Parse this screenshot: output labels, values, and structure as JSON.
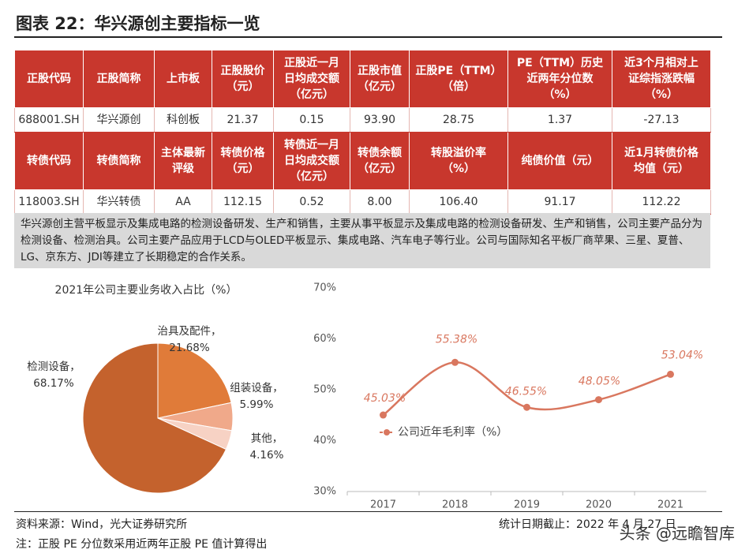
{
  "header": {
    "title": "图表 22：华兴源创主要指标一览"
  },
  "table": {
    "rows": [
      [
        "正股代码",
        "正股简称",
        "上市板",
        "正股股价\n（元）",
        "正股近一月\n日均成交额\n（亿元）",
        "正股市值\n（亿元）",
        "正股PE（TTM）\n（倍）",
        "PE（TTM）历史\n近两年分位数\n（%）",
        "近3个月相对上\n证综指涨跌幅\n（%）"
      ],
      [
        "688001.SH",
        "华兴源创",
        "科创板",
        "21.37",
        "0.15",
        "93.90",
        "28.75",
        "1.37",
        "-27.13"
      ],
      [
        "转债代码",
        "转债简称",
        "主体最新\n评级",
        "转债价格\n（元）",
        "转债近一月\n日均成交额\n（亿元）",
        "转债余额\n（亿元）",
        "转股溢价率\n（%）",
        "纯债价值（元）",
        "近1月转债价格\n均值（元）"
      ],
      [
        "118003.SH",
        "华兴转债",
        "AA",
        "112.15",
        "0.52",
        "8.00",
        "106.40",
        "91.17",
        "112.22"
      ]
    ]
  },
  "description": "华兴源创主营平板显示及集成电路的检测设备研发、生产和销售，主要从事平板显示及集成电路的检测设备研发、生产和销售，公司主要产品分为检测设备、检测治具。公司主要产品应用于LCD与OLED平板显示、集成电路、汽车电子等行业。公司与国际知名平板厂商苹果、三星、夏普、LG、京东方、JDI等建立了长期稳定的合作关系。",
  "chart_data": [
    {
      "type": "pie",
      "title": "2021年公司主要业务收入占比（%）",
      "categories": [
        "治具及配件，",
        "组装设备，",
        "其他，",
        "检测设备，"
      ],
      "values": [
        21.68,
        5.99,
        4.16,
        68.17
      ],
      "value_labels": [
        "21.68%",
        "5.99%",
        "4.16%",
        "68.17%"
      ],
      "colors": [
        "#e07b39",
        "#f0a98a",
        "#f7d2c4",
        "#c4622d"
      ]
    },
    {
      "type": "line",
      "categories": [
        "2017",
        "2018",
        "2019",
        "2020",
        "2021"
      ],
      "series": [
        {
          "name": "公司近年毛利率（%）",
          "color": "#d9775f",
          "values": [
            45.03,
            55.38,
            46.55,
            48.05,
            53.04
          ],
          "value_labels": [
            "45.03%",
            "55.38%",
            "46.55%",
            "48.05%",
            "53.04%"
          ]
        }
      ],
      "ylim": [
        30,
        70
      ],
      "yticks": [
        {
          "value": 30,
          "label": "30%"
        },
        {
          "value": 40,
          "label": "40%"
        },
        {
          "value": 50,
          "label": "50%"
        },
        {
          "value": 60,
          "label": "60%"
        },
        {
          "value": 70,
          "label": "70%"
        }
      ],
      "grid": false
    }
  ],
  "footer": {
    "source": "资料来源：Wind，光大证券研究所",
    "date": "统计日期截止：2022 年 4 月 27 日",
    "note": "注：正股 PE 分位数采用近两年正股 PE 值计算得出",
    "watermark": "头条 @远瞻智库"
  }
}
